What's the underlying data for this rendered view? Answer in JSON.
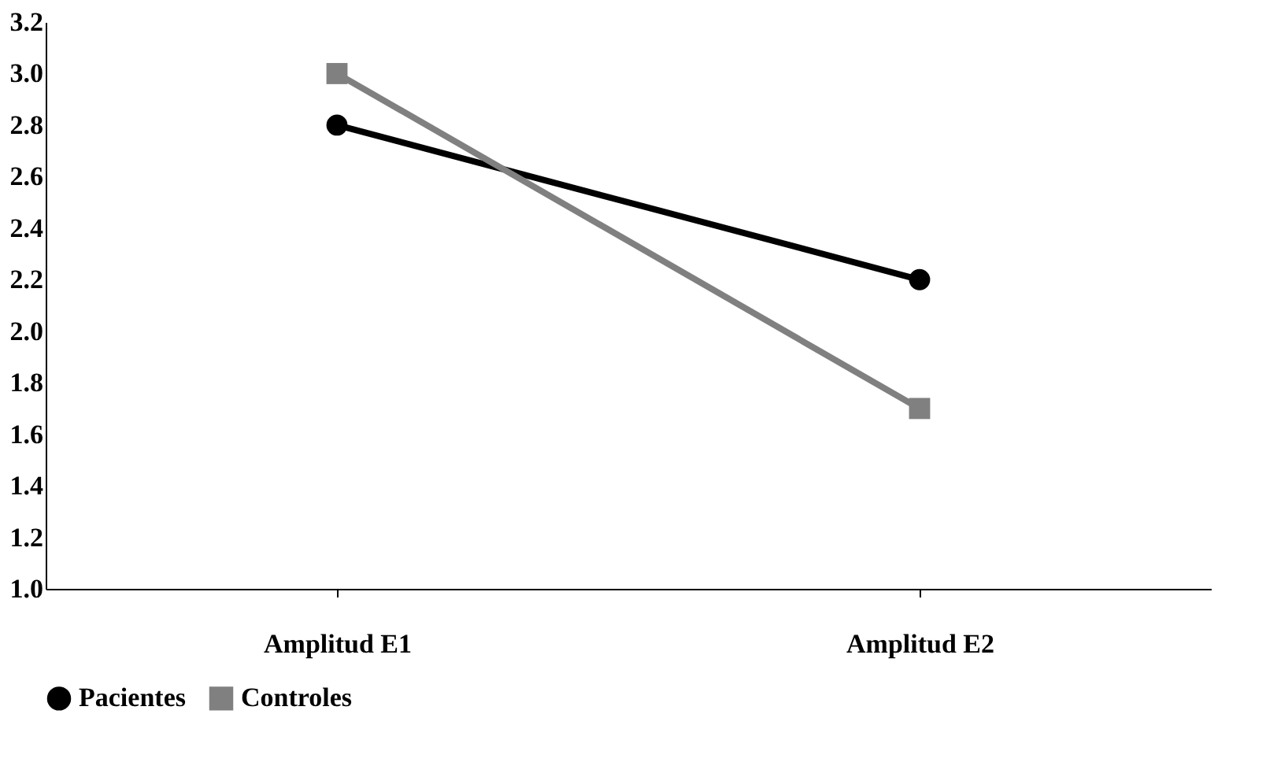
{
  "chart_data": {
    "type": "line",
    "categories": [
      "Amplitud E1",
      "Amplitud E2"
    ],
    "series": [
      {
        "name": "Pacientes",
        "color": "#000000",
        "marker": "circle",
        "values": [
          2.8,
          2.2
        ]
      },
      {
        "name": "Controles",
        "color": "#808080",
        "marker": "square",
        "values": [
          3.0,
          1.7
        ]
      }
    ],
    "ylim": [
      1.0,
      3.2
    ],
    "yticks": [
      {
        "value": 1.0,
        "label": "1.0"
      },
      1.2,
      1.4,
      1.6,
      1.8,
      {
        "value": 2.0,
        "label": "2.0"
      },
      2.2,
      2.4,
      2.6,
      2.8,
      {
        "value": 3.0,
        "label": "3.0"
      },
      3.2
    ],
    "grid": false,
    "legend": "bottom",
    "line_style": "solid"
  }
}
